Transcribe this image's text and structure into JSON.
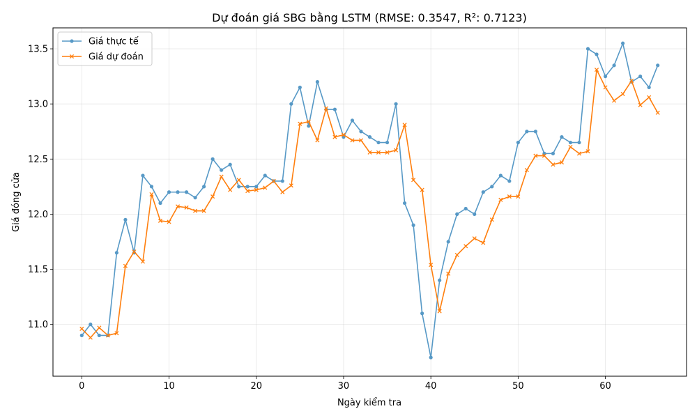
{
  "chart_data": {
    "type": "line",
    "title": "Dự đoán giá SBG bằng LSTM (RMSE: 0.3547, R²: 0.7123)",
    "xlabel": "Ngày kiểm tra",
    "ylabel": "Giá đóng cửa",
    "xlim": [
      -3.3,
      69.3
    ],
    "ylim": [
      10.53,
      13.69
    ],
    "xticks": [
      0,
      10,
      20,
      30,
      40,
      50,
      60
    ],
    "yticks": [
      11.0,
      11.5,
      12.0,
      12.5,
      13.0,
      13.5
    ],
    "ytick_labels": [
      "11.0",
      "11.5",
      "12.0",
      "12.5",
      "13.0",
      "13.5"
    ],
    "grid": true,
    "legend_position": "upper-left",
    "series": [
      {
        "name": "Giá thực tế",
        "color": "#1f77b4",
        "marker": "circle",
        "values": [
          10.9,
          11.0,
          10.9,
          10.9,
          11.65,
          11.95,
          11.65,
          12.35,
          12.25,
          12.1,
          12.2,
          12.2,
          12.2,
          12.15,
          12.25,
          12.5,
          12.4,
          12.45,
          12.25,
          12.25,
          12.25,
          12.35,
          12.3,
          12.3,
          13.0,
          13.15,
          12.8,
          13.2,
          12.95,
          12.95,
          12.7,
          12.85,
          12.75,
          12.7,
          12.65,
          12.65,
          13.0,
          12.1,
          11.9,
          11.1,
          10.7,
          11.4,
          11.75,
          12.0,
          12.05,
          12.0,
          12.2,
          12.25,
          12.35,
          12.3,
          12.65,
          12.75,
          12.75,
          12.55,
          12.55,
          12.7,
          12.65,
          12.65,
          13.5,
          13.45,
          13.25,
          13.35,
          13.55,
          13.2,
          13.25,
          13.15,
          13.35
        ]
      },
      {
        "name": "Giá dự đoán",
        "color": "#ff7f0e",
        "marker": "x",
        "values": [
          10.96,
          10.88,
          10.97,
          10.9,
          10.92,
          11.53,
          11.66,
          11.57,
          12.18,
          11.94,
          11.93,
          12.07,
          12.06,
          12.03,
          12.03,
          12.16,
          12.34,
          12.22,
          12.31,
          12.21,
          12.22,
          12.24,
          12.3,
          12.2,
          12.26,
          12.82,
          12.84,
          12.67,
          12.96,
          12.7,
          12.72,
          12.67,
          12.67,
          12.56,
          12.56,
          12.56,
          12.58,
          12.81,
          12.31,
          12.22,
          11.54,
          11.12,
          11.46,
          11.63,
          11.71,
          11.78,
          11.74,
          11.95,
          12.13,
          12.16,
          12.16,
          12.4,
          12.53,
          12.53,
          12.45,
          12.47,
          12.61,
          12.55,
          12.57,
          13.31,
          13.15,
          13.03,
          13.09,
          13.21,
          12.99,
          13.06,
          12.92
        ]
      }
    ]
  }
}
